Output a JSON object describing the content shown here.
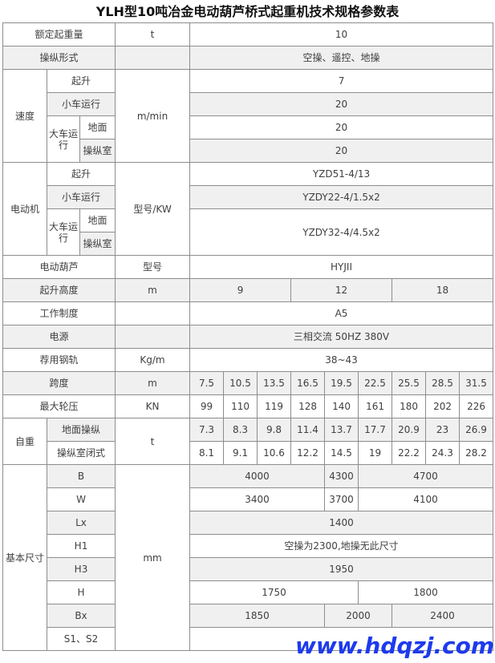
{
  "title": "YLH型10吨冶金电动葫芦桥式起重机技术规格参数表",
  "watermark": "www.hdqzj.com",
  "colors": {
    "stripe": "#f0f0f0",
    "border": "#8d8d8d",
    "text": "#3f3f3f",
    "title": "#111111",
    "watermark": "#1d3aee"
  },
  "table": {
    "rows": [
      {
        "name": "rated-capacity",
        "shade": false,
        "cells": [
          {
            "t": "额定起重量",
            "c": 3,
            "k": "l"
          },
          {
            "t": "t",
            "k": "u"
          },
          {
            "t": "10",
            "c": 9,
            "k": "v"
          }
        ]
      },
      {
        "name": "control-mode",
        "shade": true,
        "cells": [
          {
            "t": "操纵形式",
            "c": 3,
            "k": "l"
          },
          {
            "t": "",
            "k": "u"
          },
          {
            "t": "空操、遥控、地操",
            "c": 9,
            "k": "v"
          }
        ]
      },
      {
        "name": "speed-hoisting",
        "shade": false,
        "cells": [
          {
            "t": "速度",
            "r": 4,
            "k": "l"
          },
          {
            "t": "起升",
            "c": 2,
            "k": "l"
          },
          {
            "t": "m/min",
            "r": 4,
            "k": "u"
          },
          {
            "t": "7",
            "c": 9,
            "k": "v"
          }
        ]
      },
      {
        "name": "speed-trolley",
        "shade": true,
        "cells": [
          {
            "t": "小车运行",
            "c": 2,
            "k": "l"
          },
          {
            "t": "20",
            "c": 9,
            "k": "v"
          }
        ]
      },
      {
        "name": "speed-crane-ground",
        "shade": false,
        "cells": [
          {
            "t": "大车运行",
            "r": 2,
            "k": "l"
          },
          {
            "t": "地面",
            "k": "l"
          },
          {
            "t": "20",
            "c": 9,
            "k": "v"
          }
        ]
      },
      {
        "name": "speed-crane-cab",
        "shade": true,
        "cells": [
          {
            "t": "操纵室",
            "k": "l"
          },
          {
            "t": "20",
            "c": 9,
            "k": "v"
          }
        ]
      },
      {
        "name": "motor-hoisting",
        "shade": false,
        "cells": [
          {
            "t": "电动机",
            "r": 4,
            "k": "l"
          },
          {
            "t": "起升",
            "c": 2,
            "k": "l"
          },
          {
            "t": "型号/KW",
            "r": 4,
            "k": "u"
          },
          {
            "t": "YZD51-4/13",
            "c": 9,
            "k": "v"
          }
        ]
      },
      {
        "name": "motor-trolley",
        "shade": true,
        "cells": [
          {
            "t": "小车运行",
            "c": 2,
            "k": "l"
          },
          {
            "t": "YZDY22-4/1.5x2",
            "c": 9,
            "k": "v"
          }
        ]
      },
      {
        "name": "motor-crane-ground",
        "shade": false,
        "cells": [
          {
            "t": "大车运行",
            "r": 2,
            "k": "l"
          },
          {
            "t": "地面",
            "k": "l"
          },
          {
            "t": "YZDY32-4/4.5x2",
            "c": 9,
            "r": 2,
            "k": "v"
          }
        ]
      },
      {
        "name": "motor-crane-cab",
        "shade": true,
        "cells": [
          {
            "t": "操纵室",
            "k": "l"
          }
        ]
      },
      {
        "name": "electric-hoist",
        "shade": false,
        "cells": [
          {
            "t": "电动葫芦",
            "c": 3,
            "k": "l"
          },
          {
            "t": "型号",
            "k": "u"
          },
          {
            "t": "HYJII",
            "c": 9,
            "k": "v"
          }
        ]
      },
      {
        "name": "lifting-height",
        "shade": true,
        "cells": [
          {
            "t": "起升高度",
            "c": 3,
            "k": "l"
          },
          {
            "t": "m",
            "k": "u"
          },
          {
            "t": "9",
            "c": 3,
            "k": "v"
          },
          {
            "t": "12",
            "c": 3,
            "k": "v"
          },
          {
            "t": "18",
            "c": 3,
            "k": "v"
          }
        ]
      },
      {
        "name": "duty-class",
        "shade": false,
        "cells": [
          {
            "t": "工作制度",
            "c": 3,
            "k": "l"
          },
          {
            "t": "",
            "k": "u"
          },
          {
            "t": "A5",
            "c": 9,
            "k": "v"
          }
        ]
      },
      {
        "name": "power-supply",
        "shade": true,
        "cells": [
          {
            "t": "电源",
            "c": 3,
            "k": "l"
          },
          {
            "t": "",
            "k": "u"
          },
          {
            "t": "三相交流 50HZ 380V",
            "c": 9,
            "k": "v"
          }
        ]
      },
      {
        "name": "recommended-rail",
        "shade": false,
        "cells": [
          {
            "t": "荐用钢轨",
            "c": 3,
            "k": "l"
          },
          {
            "t": "Kg/m",
            "k": "u"
          },
          {
            "t": "38~43",
            "c": 9,
            "k": "v"
          }
        ]
      },
      {
        "name": "span",
        "shade": true,
        "cells": [
          {
            "t": "跨度",
            "c": 3,
            "k": "l"
          },
          {
            "t": "m",
            "k": "u"
          },
          {
            "t": "7.5",
            "k": "v"
          },
          {
            "t": "10.5",
            "k": "v"
          },
          {
            "t": "13.5",
            "k": "v"
          },
          {
            "t": "16.5",
            "k": "v"
          },
          {
            "t": "19.5",
            "k": "v"
          },
          {
            "t": "22.5",
            "k": "v"
          },
          {
            "t": "25.5",
            "k": "v"
          },
          {
            "t": "28.5",
            "k": "v"
          },
          {
            "t": "31.5",
            "k": "v"
          }
        ]
      },
      {
        "name": "max-wheel-load",
        "shade": false,
        "cells": [
          {
            "t": "最大轮压",
            "c": 3,
            "k": "l"
          },
          {
            "t": "KN",
            "k": "u"
          },
          {
            "t": "99",
            "k": "v"
          },
          {
            "t": "110",
            "k": "v"
          },
          {
            "t": "119",
            "k": "v"
          },
          {
            "t": "128",
            "k": "v"
          },
          {
            "t": "140",
            "k": "v"
          },
          {
            "t": "161",
            "k": "v"
          },
          {
            "t": "180",
            "k": "v"
          },
          {
            "t": "202",
            "k": "v"
          },
          {
            "t": "226",
            "k": "v"
          }
        ]
      },
      {
        "name": "deadweight-ground",
        "shade": true,
        "cells": [
          {
            "t": "自重",
            "r": 2,
            "k": "l"
          },
          {
            "t": "地面操纵",
            "c": 2,
            "k": "l"
          },
          {
            "t": "t",
            "r": 2,
            "k": "u"
          },
          {
            "t": "7.3",
            "k": "v"
          },
          {
            "t": "8.3",
            "k": "v"
          },
          {
            "t": "9.8",
            "k": "v"
          },
          {
            "t": "11.4",
            "k": "v"
          },
          {
            "t": "13.7",
            "k": "v"
          },
          {
            "t": "17.7",
            "k": "v"
          },
          {
            "t": "20.9",
            "k": "v"
          },
          {
            "t": "23",
            "k": "v"
          },
          {
            "t": "26.9",
            "k": "v"
          }
        ]
      },
      {
        "name": "deadweight-cab",
        "shade": false,
        "cells": [
          {
            "t": "操纵室闭式",
            "c": 2,
            "k": "l"
          },
          {
            "t": "8.1",
            "k": "v"
          },
          {
            "t": "9.1",
            "k": "v"
          },
          {
            "t": "10.6",
            "k": "v"
          },
          {
            "t": "12.2",
            "k": "v"
          },
          {
            "t": "14.5",
            "k": "v"
          },
          {
            "t": "19",
            "k": "v"
          },
          {
            "t": "22.2",
            "k": "v"
          },
          {
            "t": "24.3",
            "k": "v"
          },
          {
            "t": "28.2",
            "k": "v"
          }
        ]
      },
      {
        "name": "dim-B",
        "shade": true,
        "cells": [
          {
            "t": "基本尺寸",
            "r": 8,
            "k": "l"
          },
          {
            "t": "B",
            "c": 2,
            "k": "l"
          },
          {
            "t": "mm",
            "r": 8,
            "k": "u"
          },
          {
            "t": "4000",
            "c": 4,
            "k": "v"
          },
          {
            "t": "4300",
            "k": "v"
          },
          {
            "t": "4700",
            "c": 4,
            "k": "v"
          }
        ]
      },
      {
        "name": "dim-W",
        "shade": false,
        "cells": [
          {
            "t": "W",
            "c": 2,
            "k": "l"
          },
          {
            "t": "3400",
            "c": 4,
            "k": "v"
          },
          {
            "t": "3700",
            "k": "v"
          },
          {
            "t": "4100",
            "c": 4,
            "k": "v"
          }
        ]
      },
      {
        "name": "dim-Lx",
        "shade": true,
        "cells": [
          {
            "t": "Lx",
            "c": 2,
            "k": "l"
          },
          {
            "t": "1400",
            "c": 9,
            "k": "v"
          }
        ]
      },
      {
        "name": "dim-H1",
        "shade": false,
        "cells": [
          {
            "t": "H1",
            "c": 2,
            "k": "l"
          },
          {
            "t": "空操为2300,地操无此尺寸",
            "c": 9,
            "k": "v"
          }
        ]
      },
      {
        "name": "dim-H3",
        "shade": true,
        "cells": [
          {
            "t": "H3",
            "c": 2,
            "k": "l"
          },
          {
            "t": "1950",
            "c": 9,
            "k": "v"
          }
        ]
      },
      {
        "name": "dim-H",
        "shade": false,
        "cells": [
          {
            "t": "H",
            "c": 2,
            "k": "l"
          },
          {
            "t": "1750",
            "c": 5,
            "k": "v"
          },
          {
            "t": "1800",
            "c": 4,
            "k": "v"
          }
        ]
      },
      {
        "name": "dim-Bx",
        "shade": true,
        "cells": [
          {
            "t": "Bx",
            "c": 2,
            "k": "l"
          },
          {
            "t": "1850",
            "c": 4,
            "k": "v"
          },
          {
            "t": "2000",
            "c": 2,
            "k": "v"
          },
          {
            "t": "2400",
            "c": 3,
            "k": "v"
          }
        ]
      },
      {
        "name": "dim-S1S2",
        "shade": false,
        "cells": [
          {
            "t": "S1、S2",
            "c": 2,
            "k": "l"
          },
          {
            "t": "",
            "c": 9,
            "k": "v"
          }
        ]
      }
    ]
  }
}
